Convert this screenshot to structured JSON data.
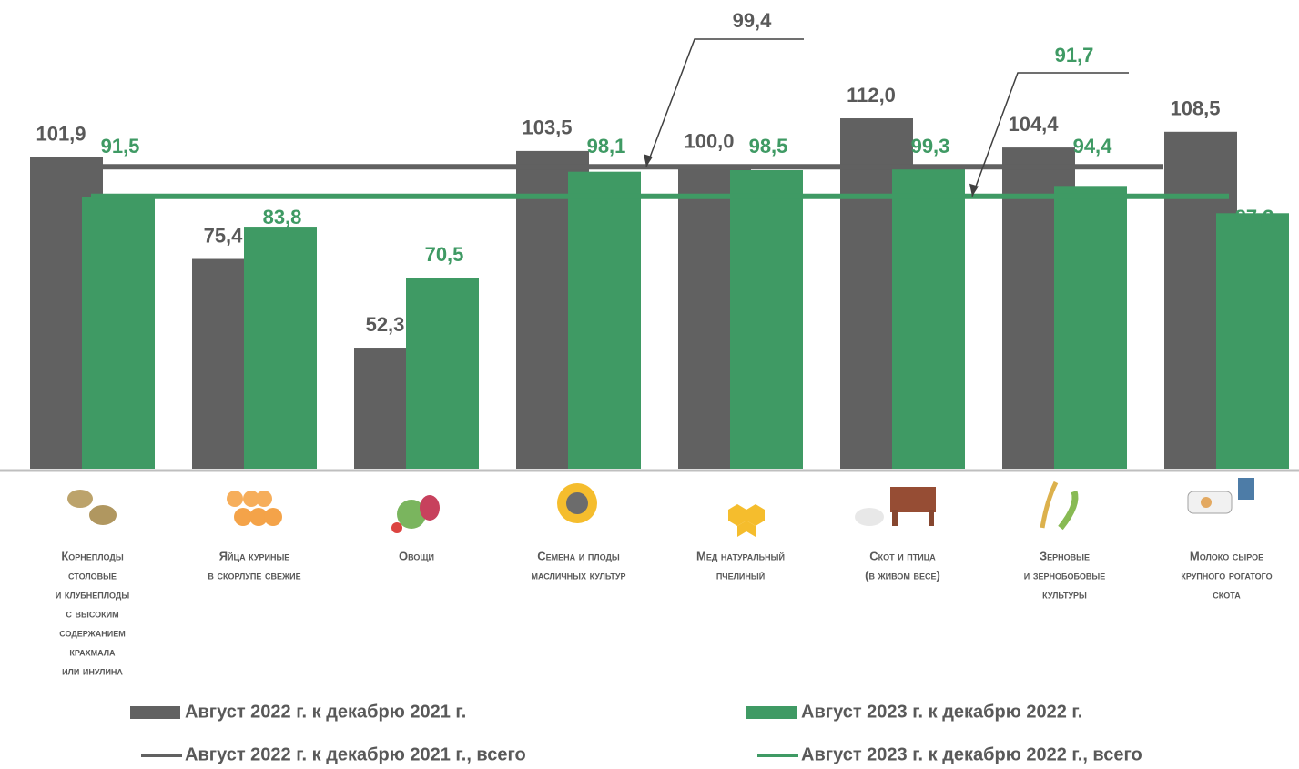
{
  "chart_data": {
    "type": "bar",
    "categories": [
      [
        "Корнеплоды",
        "столовые",
        "и клубнеплоды",
        "с высоким",
        "содержанием",
        "крахмала",
        "или инулина"
      ],
      [
        "Яйца куриные",
        "в скорлупе свежие"
      ],
      [
        "Овощи"
      ],
      [
        "Семена и плоды",
        "масличных культур"
      ],
      [
        "Мед натуральный",
        "пчелиный"
      ],
      [
        "Скот и птица",
        "(в живом весе)"
      ],
      [
        "Зерновые",
        "и зернобобовые",
        "культуры"
      ],
      [
        "Молоко сырое",
        "крупного рогатого",
        "скота"
      ]
    ],
    "series": [
      {
        "name": "Август 2022 г. к декабрю 2021 г.",
        "color": "#616161",
        "values": [
          101.9,
          75.4,
          52.3,
          103.5,
          100.0,
          112.0,
          104.4,
          108.5
        ],
        "value_labels": [
          "101,9",
          "75,4",
          "52,3",
          "103,5",
          "100,0",
          "112,0",
          "104,4",
          "108,5"
        ]
      },
      {
        "name": "Август 2023 г. к декабрю 2022 г.",
        "color": "#3f9a64",
        "values": [
          91.5,
          83.8,
          70.5,
          98.1,
          98.5,
          99.3,
          94.4,
          87.3
        ],
        "value_labels": [
          "91,5",
          "83,8",
          "70,5",
          "98,1",
          "98,5",
          "99,3",
          "94,4",
          "87,3"
        ]
      }
    ],
    "reference_lines": [
      {
        "name": "Август 2022 г. к декабрю 2021 г., всего",
        "value": 99.4,
        "label": "99,4",
        "color": "#616161"
      },
      {
        "name": "Август 2023 г. к декабрю 2022 г., всего",
        "value": 91.7,
        "label": "91,7",
        "color": "#3f9a64"
      }
    ],
    "ylim": [
      20.8,
      142.8
    ]
  }
}
